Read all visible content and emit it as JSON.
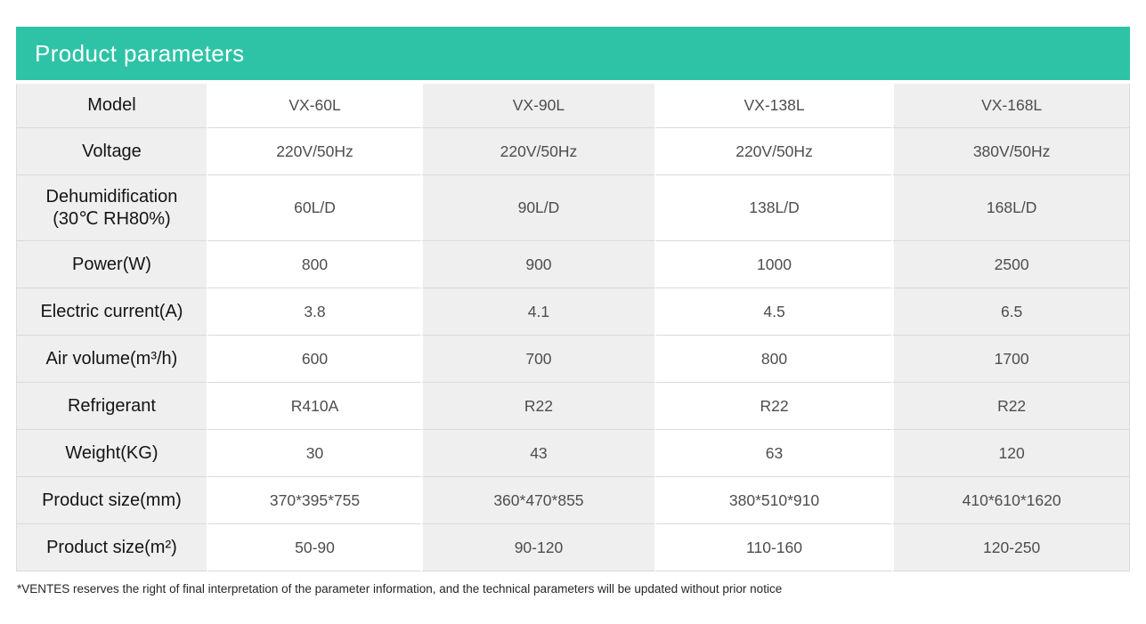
{
  "title_bar": {
    "title": "Product parameters"
  },
  "colors": {
    "accent_teal": "#2ec3a6",
    "cell_gray": "#efefef",
    "grid_line": "#d9d9d9"
  },
  "table": {
    "header_row": {
      "label": "Model",
      "values": [
        "VX-60L",
        "VX-90L",
        "VX-138L",
        "VX-168L"
      ]
    },
    "rows": [
      {
        "label": "Voltage",
        "values": [
          "220V/50Hz",
          "220V/50Hz",
          "220V/50Hz",
          "380V/50Hz"
        ]
      },
      {
        "label": "Dehumidification\n(30℃ RH80%)",
        "values": [
          "60L/D",
          "90L/D",
          "138L/D",
          "168L/D"
        ]
      },
      {
        "label": "Power(W)",
        "values": [
          "800",
          "900",
          "1000",
          "2500"
        ]
      },
      {
        "label": "Electric current(A)",
        "values": [
          "3.8",
          "4.1",
          "4.5",
          "6.5"
        ]
      },
      {
        "label": "Air volume(m³/h)",
        "values": [
          "600",
          "700",
          "800",
          "1700"
        ]
      },
      {
        "label": "Refrigerant",
        "values": [
          "R410A",
          "R22",
          "R22",
          "R22"
        ]
      },
      {
        "label": "Weight(KG)",
        "values": [
          "30",
          "43",
          "63",
          "120"
        ]
      },
      {
        "label": "Product size(mm)",
        "values": [
          "370*395*755",
          "360*470*855",
          "380*510*910",
          "410*610*1620"
        ]
      },
      {
        "label": "Product size(m²)",
        "values": [
          "50-90",
          "90-120",
          "110-160",
          "120-250"
        ]
      }
    ]
  },
  "footnote": "*VENTES reserves the right of final interpretation of the parameter information, and the technical parameters will be updated without prior notice"
}
